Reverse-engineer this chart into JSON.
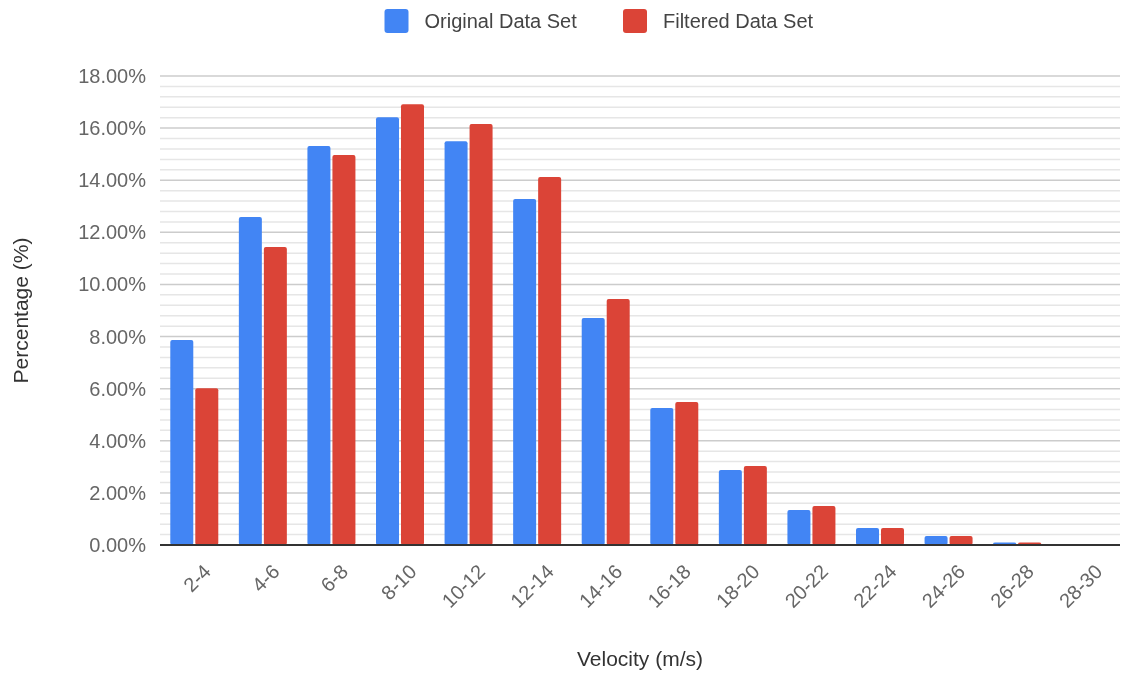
{
  "chart_data": {
    "type": "bar",
    "xlabel": "Velocity (m/s)",
    "ylabel": "Percentage (%)",
    "categories": [
      "2-4",
      "4-6",
      "6-8",
      "8-10",
      "10-12",
      "12-14",
      "14-16",
      "16-18",
      "18-20",
      "20-22",
      "22-24",
      "24-26",
      "26-28",
      "28-30"
    ],
    "series": [
      {
        "name": "Original Data Set",
        "color": "#4285f4",
        "values": [
          7.87,
          12.59,
          15.31,
          16.42,
          15.5,
          13.28,
          8.71,
          5.26,
          2.88,
          1.34,
          0.65,
          0.35,
          0.1,
          0
        ]
      },
      {
        "name": "Filtered Data Set",
        "color": "#db4437",
        "values": [
          6.02,
          11.44,
          14.97,
          16.92,
          16.16,
          14.12,
          9.44,
          5.49,
          3.03,
          1.5,
          0.65,
          0.35,
          0.1,
          0
        ]
      }
    ],
    "ylim": [
      0,
      18
    ],
    "yticks": [
      {
        "value": 0,
        "label": "0.00%"
      },
      {
        "value": 0.4,
        "label": null
      },
      {
        "value": 0.8,
        "label": null
      },
      {
        "value": 1.2,
        "label": null
      },
      {
        "value": 1.6,
        "label": null
      },
      {
        "value": 2,
        "label": "2.00%"
      },
      {
        "value": 2.4,
        "label": null
      },
      {
        "value": 2.8,
        "label": null
      },
      {
        "value": 3.2,
        "label": null
      },
      {
        "value": 3.6,
        "label": null
      },
      {
        "value": 4,
        "label": "4.00%"
      },
      {
        "value": 4.4,
        "label": null
      },
      {
        "value": 4.8,
        "label": null
      },
      {
        "value": 5.2,
        "label": null
      },
      {
        "value": 5.6,
        "label": null
      },
      {
        "value": 6,
        "label": "6.00%"
      },
      {
        "value": 6.4,
        "label": null
      },
      {
        "value": 6.8,
        "label": null
      },
      {
        "value": 7.2,
        "label": null
      },
      {
        "value": 7.6,
        "label": null
      },
      {
        "value": 8,
        "label": "8.00%"
      },
      {
        "value": 8.4,
        "label": null
      },
      {
        "value": 8.8,
        "label": null
      },
      {
        "value": 9.2,
        "label": null
      },
      {
        "value": 9.6,
        "label": null
      },
      {
        "value": 10,
        "label": "10.00%"
      },
      {
        "value": 10.4,
        "label": null
      },
      {
        "value": 10.8,
        "label": null
      },
      {
        "value": 11.2,
        "label": null
      },
      {
        "value": 11.6,
        "label": null
      },
      {
        "value": 12,
        "label": "12.00%"
      },
      {
        "value": 12.4,
        "label": null
      },
      {
        "value": 12.8,
        "label": null
      },
      {
        "value": 13.2,
        "label": null
      },
      {
        "value": 13.6,
        "label": null
      },
      {
        "value": 14,
        "label": "14.00%"
      },
      {
        "value": 14.4,
        "label": null
      },
      {
        "value": 14.8,
        "label": null
      },
      {
        "value": 15.2,
        "label": null
      },
      {
        "value": 15.6,
        "label": null
      },
      {
        "value": 16,
        "label": "16.00%"
      },
      {
        "value": 16.4,
        "label": null
      },
      {
        "value": 16.8,
        "label": null
      },
      {
        "value": 17.2,
        "label": null
      },
      {
        "value": 17.6,
        "label": null
      },
      {
        "value": 18,
        "label": "18.00%"
      }
    ],
    "grid": "y",
    "legend": "top"
  }
}
